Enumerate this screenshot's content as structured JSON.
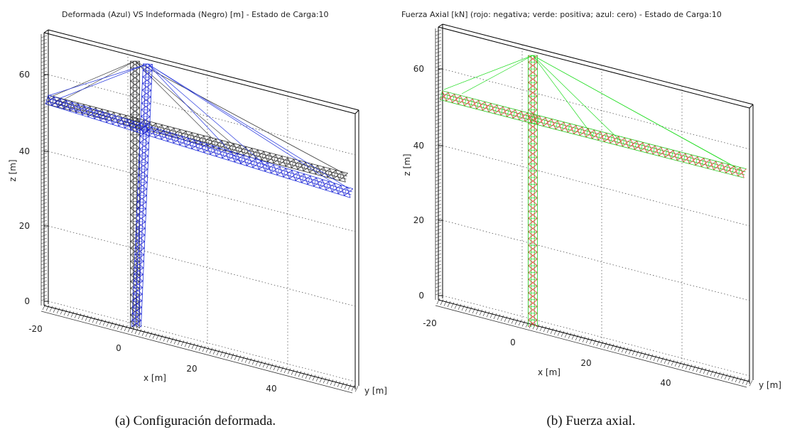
{
  "panels": [
    {
      "title": "Deformada (Azul) VS Indeformada (Negro) [m] - Estado de Carga:10",
      "z_label": "z [m]",
      "x_label": "x [m]",
      "y_label": "y [m]",
      "z_ticks": [
        "60",
        "40",
        "20",
        "0"
      ],
      "x_ticks": [
        "-20",
        "0",
        "20",
        "40"
      ],
      "caption": "(a) Configuración deformada."
    },
    {
      "title": "Fuerza Axial [kN] (rojo: negativa; verde: positiva; azul: cero) - Estado de Carga:10",
      "z_label": "z [m]",
      "x_label": "x [m]",
      "y_label": "y [m]",
      "z_ticks": [
        "60",
        "40",
        "20",
        "0"
      ],
      "x_ticks": [
        "-20",
        "0",
        "20",
        "40"
      ],
      "caption": "(b) Fuerza axial."
    }
  ]
}
